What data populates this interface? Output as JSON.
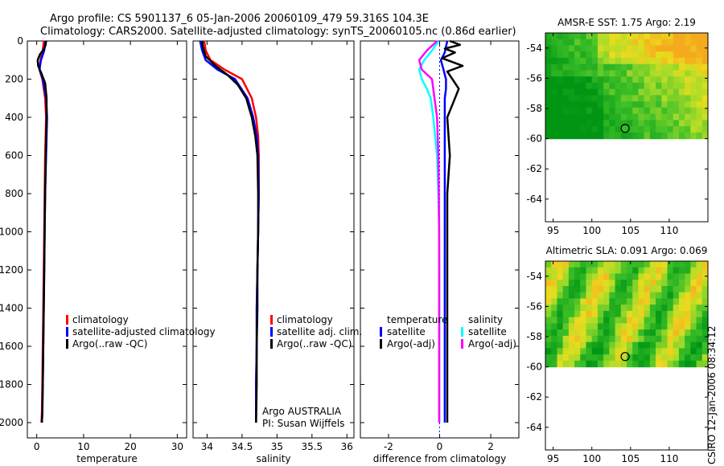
{
  "header": {
    "line1": "Argo profile: CS 5901137_6 05-Jan-2006 20060109_479 59.316S 104.3E",
    "line2": "Climatology: CARS2000. Satellite-adjusted climatology: synTS_20060105.nc (0.86d earlier)"
  },
  "side_stamp": "CSIRO 12-Jan-2006 08:34:12",
  "colors": {
    "climatology": "#ff0000",
    "satellite": "#0000ff",
    "argo": "#000000",
    "satellite_salinity": "#00ffff",
    "argo_salinity_diff": "#ff00ff",
    "zero_line": "#0000ff"
  },
  "chart_data": [
    {
      "type": "line",
      "xlabel": "temperature",
      "ylabel": "",
      "xlim": [
        -2,
        32
      ],
      "ylim": [
        2080,
        0
      ],
      "x_ticks": [
        0,
        10,
        20,
        30
      ],
      "y_ticks": [
        0,
        200,
        400,
        600,
        800,
        1000,
        1200,
        1400,
        1600,
        1800,
        2000
      ],
      "legend": [
        "climatology",
        "satellite-adjusted climatology",
        "Argo(..raw -QC)"
      ],
      "legend_position": "lower-right",
      "series": [
        {
          "name": "climatology",
          "color": "#ff0000",
          "x": [
            1.5,
            1.3,
            0.8,
            0.6,
            1.2,
            1.8,
            2.0,
            1.9,
            1.8,
            1.7,
            1.6,
            1.5,
            1.4,
            1.3,
            1.2,
            1.1,
            1.0
          ],
          "y": [
            0,
            50,
            100,
            150,
            200,
            300,
            400,
            500,
            600,
            800,
            1000,
            1200,
            1400,
            1600,
            1800,
            1950,
            2000
          ]
        },
        {
          "name": "satellite-adjusted climatology",
          "color": "#0000ff",
          "x": [
            1.9,
            1.6,
            0.9,
            0.6,
            1.3,
            2.0,
            2.2,
            2.1,
            2.0,
            1.8,
            1.7,
            1.6,
            1.5,
            1.4,
            1.3,
            1.2,
            1.1
          ],
          "y": [
            0,
            50,
            100,
            150,
            200,
            300,
            400,
            500,
            600,
            800,
            1000,
            1200,
            1400,
            1600,
            1800,
            1950,
            2000
          ]
        },
        {
          "name": "Argo(..raw -QC)",
          "color": "#000000",
          "x": [
            2.0,
            1.9,
            1.6,
            0.7,
            0.2,
            0.3,
            1.0,
            1.8,
            2.1,
            2.1,
            2.0,
            1.8,
            1.7,
            1.6,
            1.5,
            1.4,
            1.3,
            1.2,
            1.1
          ],
          "y": [
            0,
            20,
            40,
            70,
            100,
            130,
            170,
            220,
            300,
            400,
            500,
            800,
            1000,
            1200,
            1400,
            1600,
            1800,
            1950,
            2000
          ]
        }
      ]
    },
    {
      "type": "line",
      "xlabel": "salinity",
      "ylabel": "",
      "xlim": [
        33.8,
        36.1
      ],
      "ylim": [
        2080,
        0
      ],
      "x_ticks": [
        34,
        34.5,
        35,
        35.5,
        36
      ],
      "legend": [
        "climatology",
        "satellite adj. clim.",
        "Argo(..raw -QC)"
      ],
      "legend_position": "lower-right",
      "annotations": [
        "Argo AUSTRALIA",
        "PI: Susan Wijffels"
      ],
      "series": [
        {
          "name": "climatology",
          "color": "#ff0000",
          "x": [
            33.96,
            33.98,
            34.05,
            34.25,
            34.5,
            34.64,
            34.7,
            34.73,
            34.74,
            34.74,
            34.73,
            34.72,
            34.71,
            34.71,
            34.7,
            34.7
          ],
          "y": [
            0,
            50,
            100,
            150,
            200,
            300,
            400,
            500,
            600,
            800,
            1000,
            1200,
            1400,
            1600,
            1800,
            2000
          ]
        },
        {
          "name": "satellite adj. clim.",
          "color": "#0000ff",
          "x": [
            33.9,
            33.93,
            33.98,
            34.15,
            34.4,
            34.58,
            34.66,
            34.71,
            34.73,
            34.74,
            34.73,
            34.72,
            34.71,
            34.71,
            34.7,
            34.7
          ],
          "y": [
            0,
            50,
            100,
            150,
            200,
            300,
            400,
            500,
            600,
            800,
            1000,
            1200,
            1400,
            1600,
            1800,
            2000
          ]
        },
        {
          "name": "Argo(..raw -QC)",
          "color": "#000000",
          "x": [
            33.93,
            33.94,
            33.98,
            34.12,
            34.3,
            34.44,
            34.56,
            34.64,
            34.69,
            34.72,
            34.73,
            34.73,
            34.72,
            34.72,
            34.71,
            34.71,
            34.7
          ],
          "y": [
            0,
            30,
            80,
            130,
            180,
            230,
            300,
            400,
            500,
            600,
            800,
            1000,
            1200,
            1400,
            1600,
            1800,
            2000
          ]
        }
      ]
    },
    {
      "type": "line",
      "xlabel": "difference from climatology",
      "ylabel": "",
      "xlim": [
        -3.1,
        3.1
      ],
      "ylim": [
        2080,
        0
      ],
      "x_ticks": [
        -2,
        0,
        2
      ],
      "legend": [
        "temperature",
        "satellite",
        "Argo(-adj)",
        "salinity",
        "satellite",
        "Argo(-adj)"
      ],
      "legend_position": "lower-center",
      "series": [
        {
          "name": "temperature satellite",
          "color": "#0000ff",
          "x": [
            0.3,
            0.25,
            0.2,
            0.05,
            0.15,
            0.25,
            0.25,
            0.2,
            0.2,
            0.2,
            0.2,
            0.2,
            0.2,
            0.2,
            0.2,
            0.2,
            0.2
          ],
          "y": [
            0,
            30,
            60,
            100,
            150,
            200,
            250,
            300,
            400,
            600,
            800,
            1000,
            1200,
            1400,
            1600,
            1800,
            2000
          ]
        },
        {
          "name": "temperature Argo(-adj)",
          "color": "#000000",
          "x": [
            0.4,
            0.8,
            0.2,
            0.6,
            0.1,
            0.9,
            0.3,
            0.5,
            0.75,
            0.6,
            0.3,
            0.4,
            0.3,
            0.3,
            0.3,
            0.3,
            0.3,
            0.3,
            0.3
          ],
          "y": [
            0,
            20,
            40,
            60,
            90,
            130,
            160,
            200,
            250,
            300,
            400,
            600,
            800,
            1000,
            1200,
            1400,
            1600,
            1800,
            2000
          ]
        },
        {
          "name": "salinity satellite",
          "color": "#00ffff",
          "x": [
            -0.05,
            -0.3,
            -0.6,
            -0.8,
            -0.7,
            -0.5,
            -0.35,
            -0.25,
            -0.1,
            -0.05,
            -0.02,
            -0.01,
            -0.01,
            -0.01,
            -0.01,
            -0.01
          ],
          "y": [
            0,
            50,
            100,
            150,
            200,
            250,
            300,
            400,
            600,
            800,
            1000,
            1200,
            1400,
            1600,
            1800,
            2000
          ]
        },
        {
          "name": "salinity Argo(-adj)",
          "color": "#ff00ff",
          "x": [
            -0.1,
            -0.5,
            -0.8,
            -0.7,
            -0.3,
            -0.2,
            -0.1,
            -0.05,
            -0.03,
            -0.02,
            -0.02,
            -0.02
          ],
          "y": [
            0,
            50,
            100,
            150,
            200,
            300,
            400,
            600,
            800,
            1000,
            1200,
            2000
          ]
        }
      ]
    },
    {
      "type": "heatmap",
      "title": "AMSR-E SST: 1.75 Argo: 2.19",
      "xlim": [
        94,
        115
      ],
      "ylim": [
        -65.5,
        -53
      ],
      "x_ticks": [
        95,
        100,
        105,
        110
      ],
      "y_ticks": [
        -54,
        -56,
        -58,
        -60,
        -62,
        -64
      ],
      "data_extent_lat": [
        -53,
        -60
      ],
      "marker": {
        "lon": 104.3,
        "lat": -59.316
      }
    },
    {
      "type": "heatmap",
      "title": "Altimetric SLA: 0.091 Argo: 0.069",
      "xlim": [
        94,
        115
      ],
      "ylim": [
        -65.5,
        -53
      ],
      "x_ticks": [
        95,
        100,
        105,
        110
      ],
      "y_ticks": [
        -54,
        -56,
        -58,
        -60,
        -62,
        -64
      ],
      "data_extent_lat": [
        -53,
        -60
      ],
      "marker": {
        "lon": 104.3,
        "lat": -59.316
      }
    }
  ]
}
